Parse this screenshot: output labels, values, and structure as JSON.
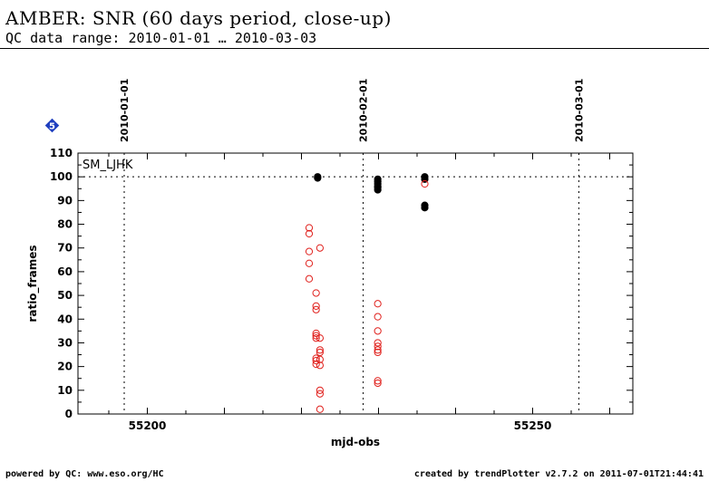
{
  "header": {
    "title": "AMBER: SNR (60 days period, close-up)",
    "subtitle": "QC data range: 2010-01-01 … 2010-03-03"
  },
  "footer": {
    "left": "powered by QC: www.eso.org/HC",
    "right": "created by trendPlotter v2.7.2 on 2011-07-01T21:44:41"
  },
  "badge": {
    "label": "5",
    "color": "#1f3fbf"
  },
  "chart_data": {
    "type": "scatter",
    "xlabel": "mjd-obs",
    "ylabel": "ratio_frames",
    "xlim": [
      55191,
      55263
    ],
    "ylim": [
      0,
      110
    ],
    "x_ticks": [
      55200,
      55250
    ],
    "y_ticks": [
      0,
      10,
      20,
      30,
      40,
      50,
      60,
      70,
      80,
      90,
      100,
      110
    ],
    "reference_line_y": 100,
    "panel_label": "SM_LJHK",
    "date_markers": [
      {
        "label": "2010-01-01",
        "mjd": 55197
      },
      {
        "label": "2010-02-01",
        "mjd": 55228
      },
      {
        "label": "2010-03-01",
        "mjd": 55256
      }
    ],
    "series": [
      {
        "marker": "filled-circle",
        "color": "#000000",
        "points": [
          [
            55222.1,
            99.5
          ],
          [
            55222.1,
            100.0
          ],
          [
            55229.9,
            99.0
          ],
          [
            55229.9,
            98.0
          ],
          [
            55229.9,
            97.0
          ],
          [
            55229.9,
            96.0
          ],
          [
            55229.9,
            95.5
          ],
          [
            55229.9,
            94.5
          ],
          [
            55236.0,
            100.0
          ],
          [
            55236.0,
            99.0
          ],
          [
            55236.0,
            88.0
          ],
          [
            55236.0,
            87.0
          ]
        ]
      },
      {
        "marker": "open-circle",
        "color": "#e0201c",
        "points": [
          [
            55221.0,
            78.5
          ],
          [
            55221.0,
            76.0
          ],
          [
            55221.0,
            68.5
          ],
          [
            55221.0,
            63.5
          ],
          [
            55221.0,
            57.0
          ],
          [
            55221.9,
            51.0
          ],
          [
            55221.9,
            45.5
          ],
          [
            55221.9,
            44.0
          ],
          [
            55221.9,
            34.0
          ],
          [
            55221.9,
            33.0
          ],
          [
            55221.9,
            32.0
          ],
          [
            55221.9,
            23.5
          ],
          [
            55221.9,
            22.5
          ],
          [
            55221.9,
            21.0
          ],
          [
            55222.4,
            70.0
          ],
          [
            55222.4,
            32.0
          ],
          [
            55222.4,
            27.0
          ],
          [
            55222.4,
            26.0
          ],
          [
            55222.4,
            23.0
          ],
          [
            55222.4,
            20.5
          ],
          [
            55222.4,
            10.0
          ],
          [
            55222.4,
            8.5
          ],
          [
            55222.4,
            2.0
          ],
          [
            55229.9,
            46.5
          ],
          [
            55229.9,
            41.0
          ],
          [
            55229.9,
            35.0
          ],
          [
            55229.9,
            30.0
          ],
          [
            55229.9,
            28.5
          ],
          [
            55229.9,
            27.0
          ],
          [
            55229.9,
            26.0
          ],
          [
            55229.9,
            14.0
          ],
          [
            55229.9,
            13.0
          ],
          [
            55236.0,
            97.0
          ]
        ]
      }
    ]
  }
}
